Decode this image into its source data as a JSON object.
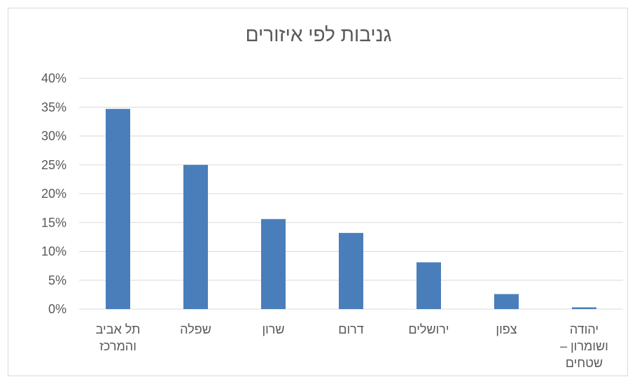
{
  "chart_data": {
    "type": "bar",
    "title": "גניבות לפי איזורים",
    "xlabel": "",
    "ylabel": "",
    "categories": [
      [
        "תל אביב",
        "והמרכז"
      ],
      [
        "שפלה"
      ],
      [
        "שרון"
      ],
      [
        "דרום"
      ],
      [
        "ירושלים"
      ],
      [
        "צפון"
      ],
      [
        "יהודה",
        "ושומרון –",
        "שטחים"
      ]
    ],
    "values": [
      0.347,
      0.25,
      0.156,
      0.132,
      0.081,
      0.026,
      0.003
    ],
    "ylim": [
      0,
      0.4
    ],
    "yticks": [
      "0%",
      "5%",
      "10%",
      "15%",
      "20%",
      "25%",
      "30%",
      "35%",
      "40%"
    ],
    "grid": true,
    "legend": "none",
    "bar_color": "#4a7ebb",
    "grid_color": "#d9d9d9"
  }
}
